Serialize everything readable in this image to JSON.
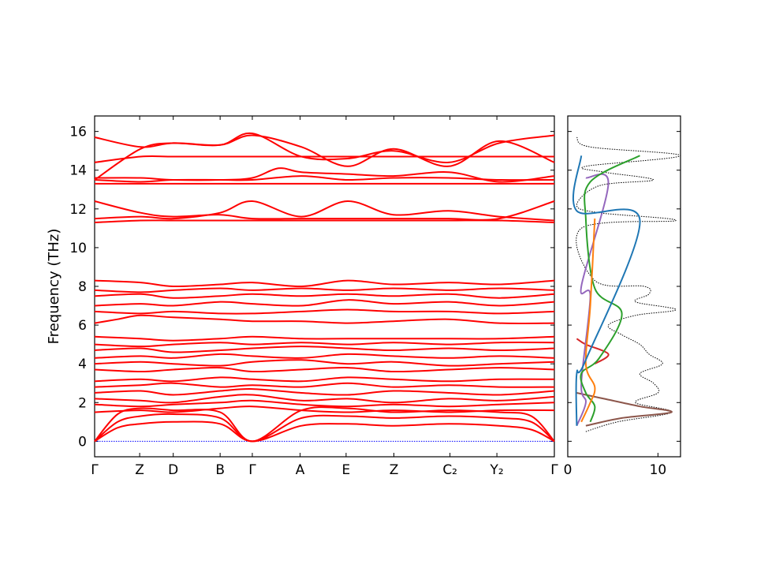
{
  "chart_data": [
    {
      "type": "line",
      "name": "phonon-band-structure",
      "ylabel": "Frequency (THz)",
      "ylim": [
        -0.8,
        16.8
      ],
      "yticks": [
        0,
        2,
        4,
        6,
        8,
        10,
        12,
        14,
        16
      ],
      "path_labels": [
        "Γ",
        "Z",
        "D",
        "B",
        "Γ",
        "A",
        "E",
        "Z",
        "C₂",
        "Y₂",
        "Γ"
      ],
      "path_positions": [
        0,
        0.098,
        0.171,
        0.273,
        0.343,
        0.447,
        0.547,
        0.651,
        0.773,
        0.875,
        1.0
      ],
      "band_color": "#ff0000",
      "zero_line_color": "#0000ff",
      "bands": [
        {
          "name": "acoustic-1",
          "x": [
            0,
            0.05,
            0.1,
            0.171,
            0.273,
            0.343,
            0.45,
            0.55,
            0.65,
            0.77,
            0.88,
            0.95,
            1.0
          ],
          "y": [
            0,
            0.7,
            0.9,
            1.0,
            0.9,
            0,
            0.8,
            0.9,
            0.8,
            0.9,
            0.8,
            0.6,
            0
          ]
        },
        {
          "name": "acoustic-2",
          "x": [
            0,
            0.05,
            0.1,
            0.171,
            0.273,
            0.343,
            0.45,
            0.55,
            0.65,
            0.77,
            0.88,
            0.95,
            1.0
          ],
          "y": [
            0,
            1.0,
            1.3,
            1.4,
            1.2,
            0,
            1.2,
            1.3,
            1.2,
            1.3,
            1.2,
            1.0,
            0
          ]
        },
        {
          "name": "acoustic-3",
          "x": [
            0,
            0.05,
            0.1,
            0.171,
            0.273,
            0.343,
            0.45,
            0.55,
            0.65,
            0.77,
            0.88,
            0.95,
            1.0
          ],
          "y": [
            0,
            1.4,
            1.7,
            1.6,
            1.5,
            0,
            1.6,
            1.7,
            1.5,
            1.6,
            1.5,
            1.3,
            0
          ]
        },
        {
          "name": "optic-1",
          "x": [
            0,
            0.1,
            0.171,
            0.273,
            0.343,
            0.45,
            0.55,
            0.65,
            0.77,
            0.88,
            1.0
          ],
          "y": [
            1.5,
            1.6,
            1.5,
            1.7,
            1.8,
            1.6,
            1.5,
            1.6,
            1.5,
            1.6,
            1.6
          ]
        },
        {
          "name": "optic-2",
          "x": [
            0,
            0.1,
            0.171,
            0.273,
            0.343,
            0.45,
            0.55,
            0.65,
            0.77,
            0.88,
            1.0
          ],
          "y": [
            1.9,
            1.8,
            1.9,
            2.0,
            2.1,
            1.9,
            1.8,
            1.9,
            1.8,
            1.9,
            2.0
          ]
        },
        {
          "name": "optic-3",
          "x": [
            0,
            0.1,
            0.171,
            0.273,
            0.343,
            0.45,
            0.55,
            0.65,
            0.77,
            0.88,
            1.0
          ],
          "y": [
            2.2,
            2.1,
            2.0,
            2.3,
            2.4,
            2.1,
            2.2,
            2.0,
            2.2,
            2.1,
            2.3
          ]
        },
        {
          "name": "optic-4",
          "x": [
            0,
            0.1,
            0.171,
            0.273,
            0.343,
            0.45,
            0.55,
            0.65,
            0.77,
            0.88,
            1.0
          ],
          "y": [
            2.5,
            2.6,
            2.4,
            2.6,
            2.7,
            2.5,
            2.4,
            2.6,
            2.5,
            2.4,
            2.6
          ]
        },
        {
          "name": "optic-5",
          "x": [
            0,
            0.1,
            0.171,
            0.273,
            0.343,
            0.45,
            0.55,
            0.65,
            0.77,
            0.88,
            1.0
          ],
          "y": [
            2.8,
            2.9,
            3.0,
            2.8,
            2.9,
            2.8,
            3.0,
            2.8,
            2.9,
            2.8,
            2.8
          ]
        },
        {
          "name": "optic-6",
          "x": [
            0,
            0.1,
            0.171,
            0.273,
            0.343,
            0.45,
            0.55,
            0.65,
            0.77,
            0.88,
            1.0
          ],
          "y": [
            3.1,
            3.2,
            3.1,
            3.3,
            3.2,
            3.1,
            3.3,
            3.2,
            3.1,
            3.2,
            3.2
          ]
        },
        {
          "name": "optic-7",
          "x": [
            0,
            0.1,
            0.171,
            0.273,
            0.343,
            0.45,
            0.55,
            0.65,
            0.77,
            0.88,
            1.0
          ],
          "y": [
            3.7,
            3.6,
            3.7,
            3.8,
            3.6,
            3.7,
            3.8,
            3.6,
            3.7,
            3.8,
            3.7
          ]
        },
        {
          "name": "optic-8",
          "x": [
            0,
            0.1,
            0.171,
            0.273,
            0.343,
            0.45,
            0.55,
            0.65,
            0.77,
            0.88,
            1.0
          ],
          "y": [
            4.0,
            4.1,
            4.0,
            3.9,
            4.1,
            4.2,
            4.0,
            4.1,
            3.9,
            4.0,
            4.1
          ]
        },
        {
          "name": "optic-9",
          "x": [
            0,
            0.1,
            0.171,
            0.273,
            0.343,
            0.45,
            0.55,
            0.65,
            0.77,
            0.88,
            1.0
          ],
          "y": [
            4.3,
            4.4,
            4.3,
            4.5,
            4.4,
            4.3,
            4.5,
            4.4,
            4.3,
            4.4,
            4.3
          ]
        },
        {
          "name": "optic-10",
          "x": [
            0,
            0.1,
            0.171,
            0.273,
            0.343,
            0.45,
            0.55,
            0.65,
            0.77,
            0.88,
            1.0
          ],
          "y": [
            4.7,
            4.8,
            4.6,
            4.7,
            4.8,
            4.9,
            4.8,
            4.7,
            4.8,
            4.7,
            4.8
          ]
        },
        {
          "name": "optic-11",
          "x": [
            0,
            0.1,
            0.171,
            0.273,
            0.343,
            0.45,
            0.55,
            0.65,
            0.77,
            0.88,
            1.0
          ],
          "y": [
            5.0,
            4.9,
            5.0,
            5.1,
            5.0,
            5.1,
            5.0,
            5.1,
            5.0,
            5.1,
            5.1
          ]
        },
        {
          "name": "optic-12",
          "x": [
            0,
            0.1,
            0.171,
            0.273,
            0.343,
            0.45,
            0.55,
            0.65,
            0.77,
            0.88,
            1.0
          ],
          "y": [
            5.4,
            5.3,
            5.2,
            5.3,
            5.4,
            5.3,
            5.3,
            5.3,
            5.3,
            5.3,
            5.4
          ]
        },
        {
          "name": "optic-13",
          "x": [
            0,
            0.05,
            0.1,
            0.171,
            0.273,
            0.343,
            0.45,
            0.55,
            0.65,
            0.77,
            0.88,
            1.0
          ],
          "y": [
            6.1,
            6.3,
            6.5,
            6.4,
            6.3,
            6.2,
            6.2,
            6.1,
            6.2,
            6.3,
            6.1,
            6.1
          ]
        },
        {
          "name": "optic-14",
          "x": [
            0,
            0.1,
            0.171,
            0.273,
            0.343,
            0.45,
            0.55,
            0.65,
            0.77,
            0.88,
            1.0
          ],
          "y": [
            6.7,
            6.6,
            6.7,
            6.6,
            6.6,
            6.7,
            6.8,
            6.7,
            6.7,
            6.6,
            6.7
          ]
        },
        {
          "name": "optic-15",
          "x": [
            0,
            0.1,
            0.171,
            0.273,
            0.343,
            0.45,
            0.55,
            0.65,
            0.77,
            0.88,
            1.0
          ],
          "y": [
            7.0,
            7.1,
            7.0,
            7.2,
            7.1,
            7.0,
            7.3,
            7.1,
            7.2,
            7.0,
            7.2
          ]
        },
        {
          "name": "optic-16",
          "x": [
            0,
            0.1,
            0.171,
            0.273,
            0.343,
            0.45,
            0.55,
            0.65,
            0.77,
            0.88,
            1.0
          ],
          "y": [
            7.5,
            7.6,
            7.4,
            7.5,
            7.6,
            7.5,
            7.6,
            7.5,
            7.6,
            7.4,
            7.6
          ]
        },
        {
          "name": "optic-17",
          "x": [
            0,
            0.1,
            0.171,
            0.273,
            0.343,
            0.45,
            0.55,
            0.65,
            0.77,
            0.88,
            1.0
          ],
          "y": [
            7.8,
            7.7,
            7.8,
            7.9,
            7.8,
            7.9,
            7.8,
            7.9,
            7.8,
            7.9,
            7.8
          ]
        },
        {
          "name": "optic-18",
          "x": [
            0,
            0.1,
            0.171,
            0.273,
            0.343,
            0.45,
            0.55,
            0.65,
            0.77,
            0.88,
            1.0
          ],
          "y": [
            8.3,
            8.2,
            8.0,
            8.1,
            8.2,
            8.0,
            8.3,
            8.1,
            8.2,
            8.1,
            8.3
          ]
        },
        {
          "name": "optic-19",
          "x": [
            0,
            0.1,
            0.171,
            0.273,
            0.343,
            0.45,
            0.55,
            0.65,
            0.77,
            0.88,
            1.0
          ],
          "y": [
            11.3,
            11.4,
            11.4,
            11.4,
            11.4,
            11.4,
            11.4,
            11.4,
            11.4,
            11.4,
            11.3
          ]
        },
        {
          "name": "optic-20",
          "x": [
            0,
            0.1,
            0.171,
            0.273,
            0.343,
            0.45,
            0.55,
            0.65,
            0.77,
            0.88,
            1.0
          ],
          "y": [
            11.5,
            11.6,
            11.5,
            11.8,
            12.4,
            11.6,
            12.4,
            11.7,
            11.9,
            11.6,
            11.4
          ]
        },
        {
          "name": "optic-21",
          "x": [
            0,
            0.1,
            0.171,
            0.273,
            0.343,
            0.45,
            0.55,
            0.65,
            0.77,
            0.88,
            1.0
          ],
          "y": [
            12.4,
            11.8,
            11.6,
            11.7,
            11.5,
            11.5,
            11.5,
            11.5,
            11.5,
            11.5,
            12.4
          ]
        },
        {
          "name": "optic-22",
          "x": [
            0,
            0.1,
            0.171,
            0.273,
            0.343,
            0.45,
            0.55,
            0.65,
            0.77,
            0.88,
            1.0
          ],
          "y": [
            13.3,
            13.3,
            13.3,
            13.3,
            13.3,
            13.3,
            13.3,
            13.3,
            13.3,
            13.3,
            13.3
          ]
        },
        {
          "name": "optic-23",
          "x": [
            0,
            0.1,
            0.171,
            0.273,
            0.343,
            0.45,
            0.55,
            0.65,
            0.77,
            0.88,
            1.0
          ],
          "y": [
            13.5,
            13.4,
            13.5,
            13.5,
            13.5,
            13.7,
            13.5,
            13.6,
            13.6,
            13.5,
            13.5
          ]
        },
        {
          "name": "optic-24",
          "x": [
            0,
            0.1,
            0.171,
            0.273,
            0.343,
            0.4,
            0.45,
            0.55,
            0.65,
            0.77,
            0.88,
            1.0
          ],
          "y": [
            13.6,
            13.6,
            13.5,
            13.5,
            13.6,
            14.1,
            13.9,
            13.8,
            13.7,
            13.9,
            13.4,
            13.7
          ]
        },
        {
          "name": "optic-25",
          "x": [
            0,
            0.1,
            0.171,
            0.273,
            0.343,
            0.45,
            0.55,
            0.65,
            0.77,
            0.88,
            1.0
          ],
          "y": [
            14.4,
            14.7,
            14.7,
            14.7,
            14.7,
            14.7,
            14.7,
            14.7,
            14.7,
            14.7,
            14.7
          ]
        },
        {
          "name": "optic-26",
          "x": [
            0,
            0.1,
            0.171,
            0.273,
            0.343,
            0.45,
            0.55,
            0.65,
            0.77,
            0.88,
            1.0
          ],
          "y": [
            13.5,
            15.1,
            15.4,
            15.3,
            15.8,
            15.2,
            14.2,
            15.1,
            14.2,
            15.5,
            14.4
          ]
        },
        {
          "name": "optic-27",
          "x": [
            0,
            0.1,
            0.171,
            0.273,
            0.343,
            0.45,
            0.55,
            0.65,
            0.77,
            0.88,
            1.0
          ],
          "y": [
            15.7,
            15.2,
            15.4,
            15.3,
            15.9,
            14.7,
            14.6,
            15.0,
            14.4,
            15.4,
            15.8
          ]
        }
      ]
    },
    {
      "type": "line",
      "name": "phonon-dos",
      "xlim": [
        0,
        12.5
      ],
      "xticks": [
        0,
        10
      ],
      "ylim": [
        -0.8,
        16.8
      ],
      "series": [
        {
          "color": "#000000",
          "style": "dotted",
          "y": [
            0.5,
            1.0,
            1.5,
            2.0,
            2.5,
            3.0,
            3.5,
            4.0,
            4.5,
            5.0,
            5.5,
            6.0,
            6.5,
            6.8,
            7.2,
            7.6,
            8.0,
            8.3,
            11.0,
            11.4,
            11.8,
            12.2,
            13.2,
            13.5,
            13.9,
            14.2,
            14.75,
            15.2,
            15.7
          ],
          "x": [
            2.0,
            5.5,
            11.5,
            7.5,
            10.0,
            9.5,
            8.0,
            10.5,
            9.0,
            8.0,
            6.0,
            4.5,
            7.5,
            12.0,
            7.5,
            9.0,
            8.5,
            3.0,
            1.5,
            12.0,
            3.5,
            1.0,
            3.5,
            9.5,
            4.0,
            2.0,
            12.5,
            2.5,
            1.0
          ]
        },
        {
          "color": "#8c564b",
          "style": "solid",
          "y": [
            0.8,
            1.2,
            1.5,
            1.8,
            2.2,
            2.5
          ],
          "x": [
            2.0,
            6.0,
            11.5,
            8.0,
            4.0,
            1.0
          ]
        },
        {
          "color": "#d62728",
          "style": "solid",
          "y": [
            4.0,
            4.5,
            5.0,
            5.3
          ],
          "x": [
            3.0,
            4.5,
            2.0,
            1.0
          ]
        },
        {
          "color": "#9467bd",
          "style": "solid",
          "y": [
            0.8,
            2.0,
            3.0,
            7.5,
            8.0,
            13.3,
            13.6
          ],
          "x": [
            1.0,
            2.0,
            1.5,
            2.5,
            1.5,
            4.5,
            2.0
          ]
        },
        {
          "color": "#2ca02c",
          "style": "solid",
          "y": [
            1.0,
            1.8,
            2.5,
            3.5,
            4.3,
            6.6,
            7.9,
            11.5,
            13.4,
            14.75
          ],
          "x": [
            2.5,
            3.0,
            2.0,
            1.5,
            3.5,
            6.0,
            3.0,
            2.0,
            2.5,
            8.0
          ]
        },
        {
          "color": "#ff7f0e",
          "style": "solid",
          "y": [
            1.0,
            2.0,
            2.8,
            4.0,
            7.0,
            11.5
          ],
          "x": [
            1.5,
            2.5,
            3.0,
            2.0,
            2.5,
            3.0
          ]
        },
        {
          "color": "#1f77b4",
          "style": "solid",
          "y": [
            0.8,
            3.5,
            4.2,
            11.4,
            11.9,
            14.75
          ],
          "x": [
            1.0,
            1.0,
            2.0,
            8.0,
            1.0,
            1.5
          ]
        }
      ]
    }
  ]
}
